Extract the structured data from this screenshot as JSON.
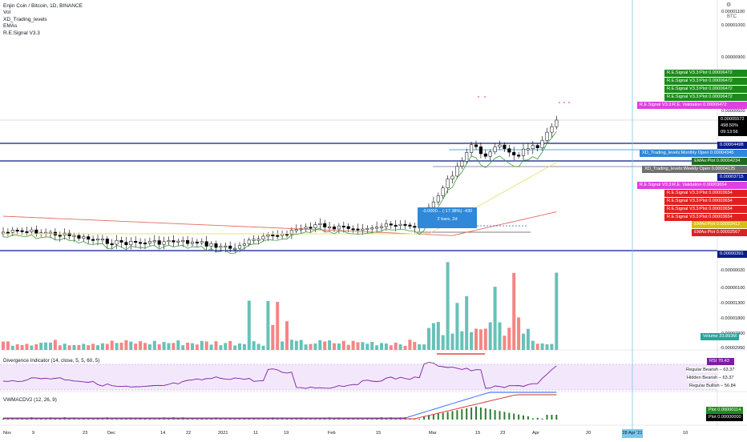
{
  "legend": {
    "symbol": "Enjin Coin / Bitcoin, 1D, BINANCE",
    "lines": [
      "Vol",
      "XD_Trading_levels",
      "EMAs",
      "R.E.Signal V3.3"
    ]
  },
  "price_axis": {
    "currency": "BTC",
    "labels": [
      "0.00001100",
      "0.00001000",
      "0.00000900",
      "0.00000600"
    ],
    "current_price": "0.00005572",
    "change_pct": "498.50%",
    "countdown": "09:13:56"
  },
  "right_tags": [
    {
      "label": "R.E.Signal V3.3:Plot",
      "value": "0.00006472",
      "color": "#1e8a1e"
    },
    {
      "label": "R.E.Signal V3.3:Plot",
      "value": "0.00006472",
      "color": "#1e8a1e"
    },
    {
      "label": "R.E.Signal V3.3:Plot",
      "value": "0.00006472",
      "color": "#1e8a1e"
    },
    {
      "label": "R.E.Signal V3.3:Plot",
      "value": "0.00006472",
      "color": "#1e8a1e"
    },
    {
      "label": "R.E.Signal V3.3:R.E. Validation",
      "value": "0.00006472",
      "color": "#e040e0"
    },
    {
      "label": "",
      "value": "0.00004498",
      "color": "#0b1c8c"
    },
    {
      "label": "XD_Trading_levels:Monthly Open",
      "value": "0.00004345",
      "color": "#2f88d8"
    },
    {
      "label": "EMAs:Plot",
      "value": "0.00004234",
      "color": "#1e6b1e"
    },
    {
      "label": "XD_Trading_levels:Weekly Open",
      "value": "0.00004125",
      "color": "#707070"
    },
    {
      "label": "",
      "value": "0.00003715",
      "color": "#0b1c8c"
    },
    {
      "label": "R.E.Signal V3.3:R.E. Validation",
      "value": "0.00003654",
      "color": "#e040e0"
    },
    {
      "label": "R.E.Signal V3.3:Plot",
      "value": "0.00003654",
      "color": "#e02020"
    },
    {
      "label": "R.E.Signal V3.3:Plot",
      "value": "0.00003654",
      "color": "#e02020"
    },
    {
      "label": "R.E.Signal V3.3:Plot",
      "value": "0.00003654",
      "color": "#e02020"
    },
    {
      "label": "R.E.Signal V3.3:Plot",
      "value": "0.00003654",
      "color": "#e02020"
    },
    {
      "label": "EMAs:Plot",
      "value": "0.00003412",
      "color": "#d8c010"
    },
    {
      "label": "EMAs:Plot",
      "value": "0.00002567",
      "color": "#e02020"
    },
    {
      "label": "",
      "value": "0.00000391",
      "color": "#0b1c8c"
    }
  ],
  "measure_tooltip": {
    "line1": "-0.0000... (-17.38%) -430",
    "line2": "2 bars, 2d"
  },
  "volume_axis": {
    "labels": [
      "-0.00000020",
      "-0.00000100",
      "-0.00001300",
      "-0.00001800",
      "-0.00002300",
      "-0.00002950"
    ],
    "tag_label": "Volume",
    "tag_value": "33.893M"
  },
  "rsi_pane": {
    "title": "Divergence Indicator (14, close, 5, 5, 60, 5)",
    "rsi_label": "RSI",
    "rsi_value": "70.43",
    "rows": [
      {
        "label": "Regular Bearish",
        "value": "63.37"
      },
      {
        "label": "Hidden Bearish",
        "value": "63.37"
      },
      {
        "label": "Regular Bullish",
        "value": "56.84"
      }
    ]
  },
  "macd_pane": {
    "title": "VWMACDV2 (12, 26, 9)",
    "tags": [
      {
        "label": "Plot",
        "value": "0.00000114",
        "color": "#1e8a1e"
      },
      {
        "label": "Plot",
        "value": "0.00000000",
        "color": "#000000"
      }
    ]
  },
  "time_axis": {
    "labels": [
      "Nov",
      "9",
      "23",
      "Dec",
      "14",
      "22",
      "2021",
      "11",
      "19",
      "Feb",
      "15",
      "Mar",
      "15",
      "23",
      "Apr",
      "20",
      "10"
    ],
    "cursor_label": "28 Apr '21"
  },
  "colors": {
    "up": "#26a69a",
    "down": "#ef5350",
    "level_line": "#0b1c8c",
    "ema_yellow": "#e8e07a",
    "ema_red": "#e56b5f",
    "rsi_line": "#7b1fa2",
    "rsi_band": "#f3e8fb",
    "macd_blue": "#2962ff",
    "macd_red": "#d32f2f",
    "cursor": "#7ec6e8"
  }
}
